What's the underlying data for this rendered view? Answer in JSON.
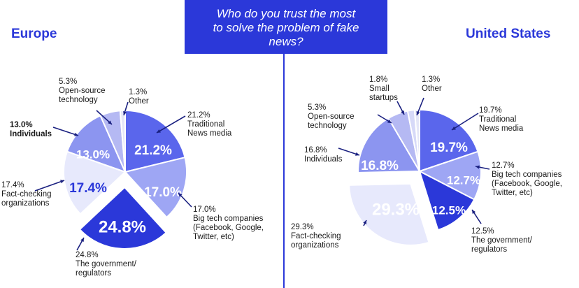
{
  "title": "Who do you trust the most to solve the problem of fake news?",
  "title_lines": [
    "Who do you trust the most",
    "to solve the problem of fake",
    "news?"
  ],
  "colors": {
    "brand": "#2b38d9",
    "slices": {
      "traditional": "#5a66ec",
      "bigtech": "#9ea6f4",
      "government": "#2b38d9",
      "factcheck": "#e7e9fc",
      "individuals": "#8c95f0",
      "opensource": "#b5b9f3",
      "startups": "#d6d9f8",
      "other": "#e4e6f7"
    }
  },
  "chart_data": [
    {
      "type": "pie",
      "title": "Europe",
      "series": [
        {
          "name": "Traditional News media",
          "value": 21.2,
          "label": "21.2%",
          "callout": [
            "21.2%",
            "Traditional",
            "News media"
          ]
        },
        {
          "name": "Big tech companies (Facebook, Google, Twitter, etc)",
          "value": 17.0,
          "label": "17.0%",
          "callout": [
            "17.0%",
            "Big tech companies",
            "(Facebook, Google,",
            "Twitter, etc)"
          ]
        },
        {
          "name": "The government/ regulators",
          "value": 24.8,
          "label": "24.8%",
          "callout": [
            "24.8%",
            "The government/",
            "regulators"
          ]
        },
        {
          "name": "Fact-checking organizations",
          "value": 17.4,
          "label": "17.4%",
          "callout": [
            "17.4%",
            "Fact-checking",
            "organizations"
          ]
        },
        {
          "name": "Individuals",
          "value": 13.0,
          "label": "13.0%",
          "callout": [
            "13.0%",
            "Individuals"
          ]
        },
        {
          "name": "Open-source technology",
          "value": 5.3,
          "label": "",
          "callout": [
            "5.3%",
            "Open-source",
            "technology"
          ]
        },
        {
          "name": "Other",
          "value": 1.3,
          "label": "",
          "callout": [
            "1.3%",
            "Other"
          ]
        }
      ]
    },
    {
      "type": "pie",
      "title": "United States",
      "series": [
        {
          "name": "Traditional News media",
          "value": 19.7,
          "label": "19.7%",
          "callout": [
            "19.7%",
            "Traditional",
            "News media"
          ]
        },
        {
          "name": "Big tech companies (Facebook, Google, Twitter, etc)",
          "value": 12.7,
          "label": "12.7%",
          "callout": [
            "12.7%",
            "Big tech companies",
            "(Facebook, Google,",
            "Twitter, etc)"
          ]
        },
        {
          "name": "The government/ regulators",
          "value": 12.5,
          "label": "12.5%",
          "callout": [
            "12.5%",
            "The government/",
            "regulators"
          ]
        },
        {
          "name": "Fact-checking organizations",
          "value": 29.3,
          "label": "29.3%",
          "callout": [
            "29.3%",
            "Fact-checking",
            "organizations"
          ]
        },
        {
          "name": "Individuals",
          "value": 16.8,
          "label": "16.8%",
          "callout": [
            "16.8%",
            "Individuals"
          ]
        },
        {
          "name": "Open-source technology",
          "value": 5.3,
          "label": "",
          "callout": [
            "5.3%",
            "Open-source",
            "technology"
          ]
        },
        {
          "name": "Small startups",
          "value": 1.8,
          "label": "",
          "callout": [
            "1.8%",
            "Small",
            "startups"
          ]
        },
        {
          "name": "Other",
          "value": 1.3,
          "label": "",
          "callout": [
            "1.3%",
            "Other"
          ]
        }
      ]
    }
  ]
}
